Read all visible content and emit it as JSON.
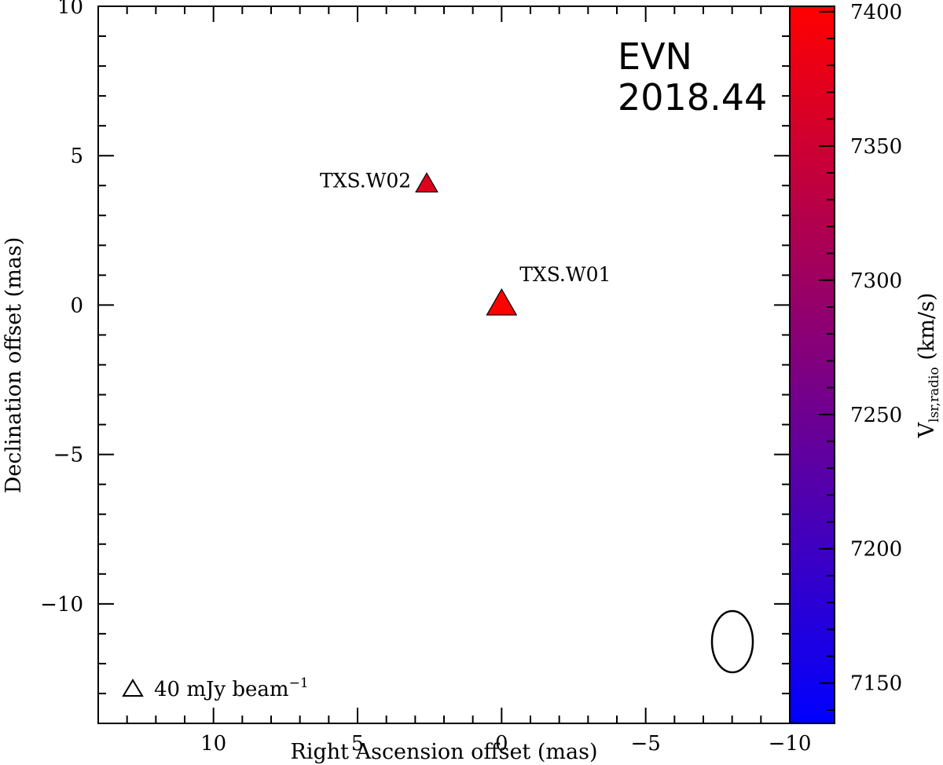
{
  "chart_data": {
    "type": "scatter",
    "xlabel": "Right Ascension offset (mas)",
    "ylabel": "Declination offset (mas)",
    "xlim": [
      14,
      -10
    ],
    "ylim": [
      -14,
      10
    ],
    "x_ticks": [
      10,
      5,
      0,
      -5,
      -10
    ],
    "x_tick_labels": [
      "10",
      "5",
      "0",
      "−5",
      "−10"
    ],
    "y_ticks": [
      10,
      5,
      0,
      -5,
      -10
    ],
    "y_tick_labels": [
      "10",
      "5",
      "0",
      "−5",
      "−10"
    ],
    "annotation_lines": [
      "EVN",
      "2018.44"
    ],
    "points": [
      {
        "label": "TXS.W01",
        "x": 0.0,
        "y": 0.1,
        "velocity": 7400,
        "flux_mjy": 75,
        "color": "#ff0000"
      },
      {
        "label": "TXS.W02",
        "x": 2.6,
        "y": 4.1,
        "velocity": 7370,
        "flux_mjy": 40,
        "color": "#e0001e"
      }
    ],
    "legend": {
      "symbol": "triangle",
      "text": "40 mJy beam",
      "superscript": "−1",
      "position": "bottom-left"
    },
    "beam": {
      "shape": "ellipse",
      "position": "bottom-right",
      "major_mas": 3.0,
      "minor_mas": 1.4
    },
    "colorbar": {
      "label_main": "V",
      "label_sub": "lsr,radio",
      "label_unit": " (km/s)",
      "range": [
        7135,
        7402
      ],
      "ticks": [
        7150,
        7200,
        7250,
        7300,
        7350,
        7400
      ],
      "tick_labels": [
        "7150",
        "7200",
        "7250",
        "7300",
        "7350",
        "7400"
      ],
      "color_low": "#0000ff",
      "color_high": "#ff0000"
    }
  }
}
